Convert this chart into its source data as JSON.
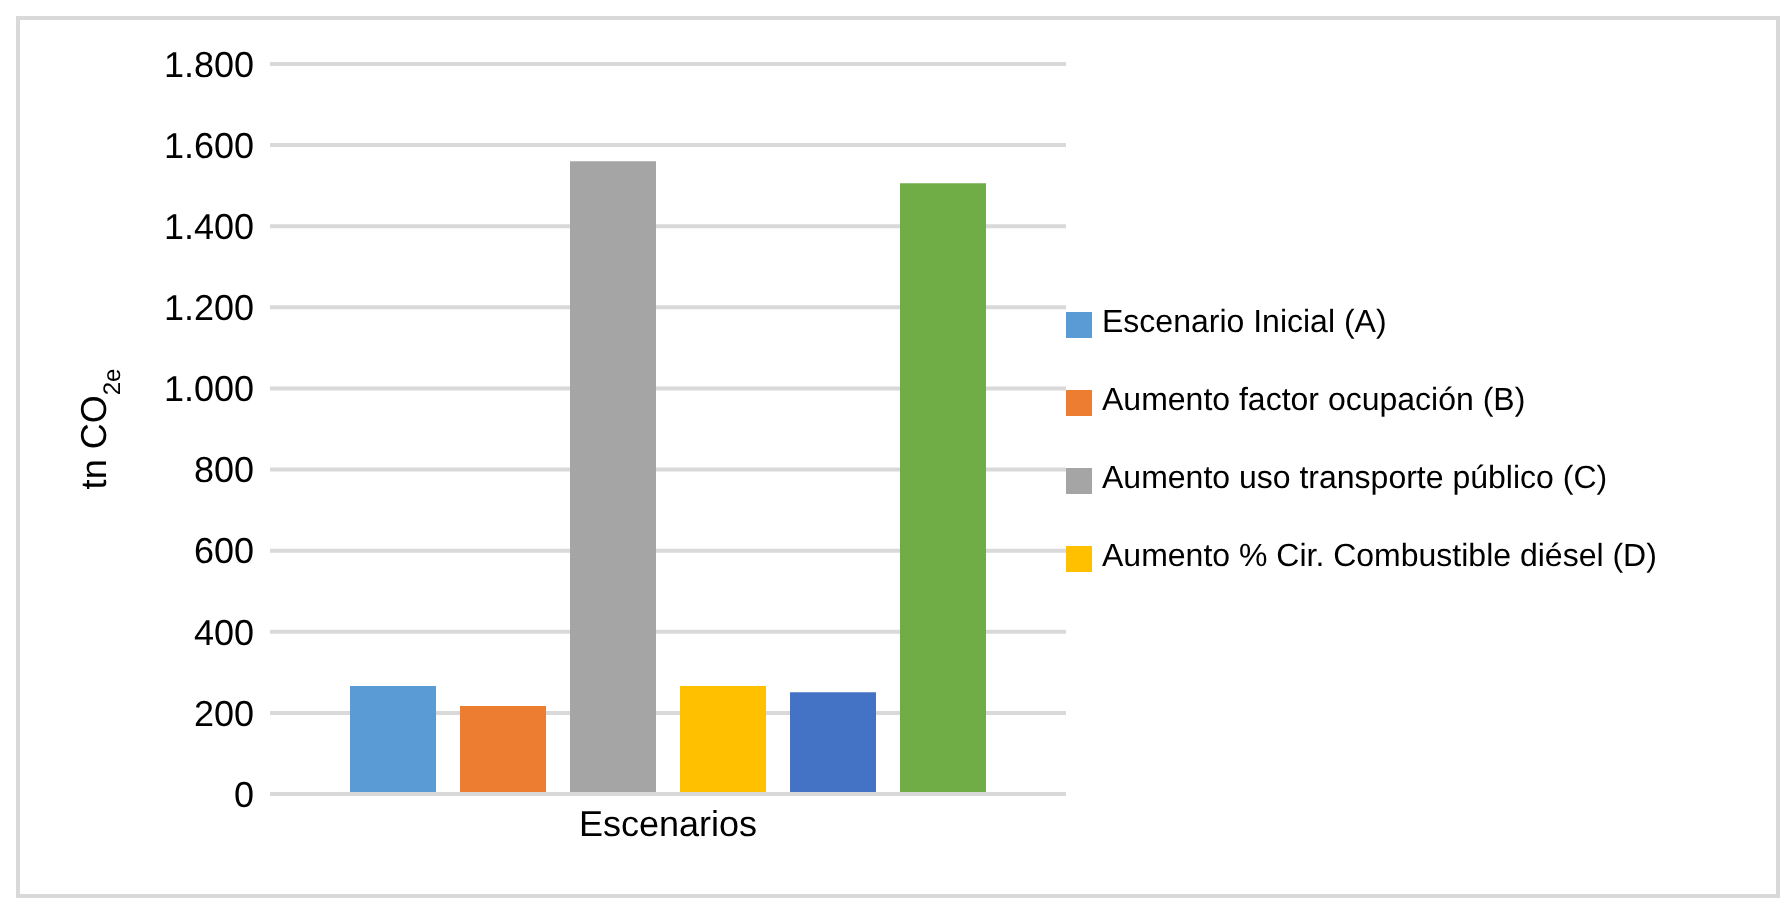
{
  "chart_data": {
    "type": "bar",
    "categories": [
      "Escenarios"
    ],
    "ylabel": "tn CO$_{2e}$",
    "ylim": [
      0,
      1800
    ],
    "yticks": [
      0,
      200,
      400,
      600,
      800,
      {
        "value": 1000,
        "label": "1.000"
      },
      {
        "value": 1200,
        "label": "1.200"
      },
      {
        "value": 1400,
        "label": "1.400"
      },
      {
        "value": 1600,
        "label": "1.600"
      },
      {
        "value": 1800,
        "label": "1.800"
      }
    ],
    "grid": "y",
    "legend": "right",
    "series": [
      {
        "name": "Escenario Inicial (A)",
        "color": "#5b9bd5",
        "values": [
          266
        ]
      },
      {
        "name": "Aumento factor ocupación (B)",
        "color": "#ed7d31",
        "values": [
          217
        ]
      },
      {
        "name": "Aumento uso transporte público (C)",
        "color": "#a5a5a5",
        "values": [
          1560
        ]
      },
      {
        "name": "Aumento % Cir. Combustible diésel (D)",
        "color": "#ffc000",
        "values": [
          266
        ]
      },
      {
        "color": "#4472c4",
        "values": [
          251
        ]
      },
      {
        "color": "#70ad47",
        "values": [
          1506
        ]
      }
    ]
  }
}
